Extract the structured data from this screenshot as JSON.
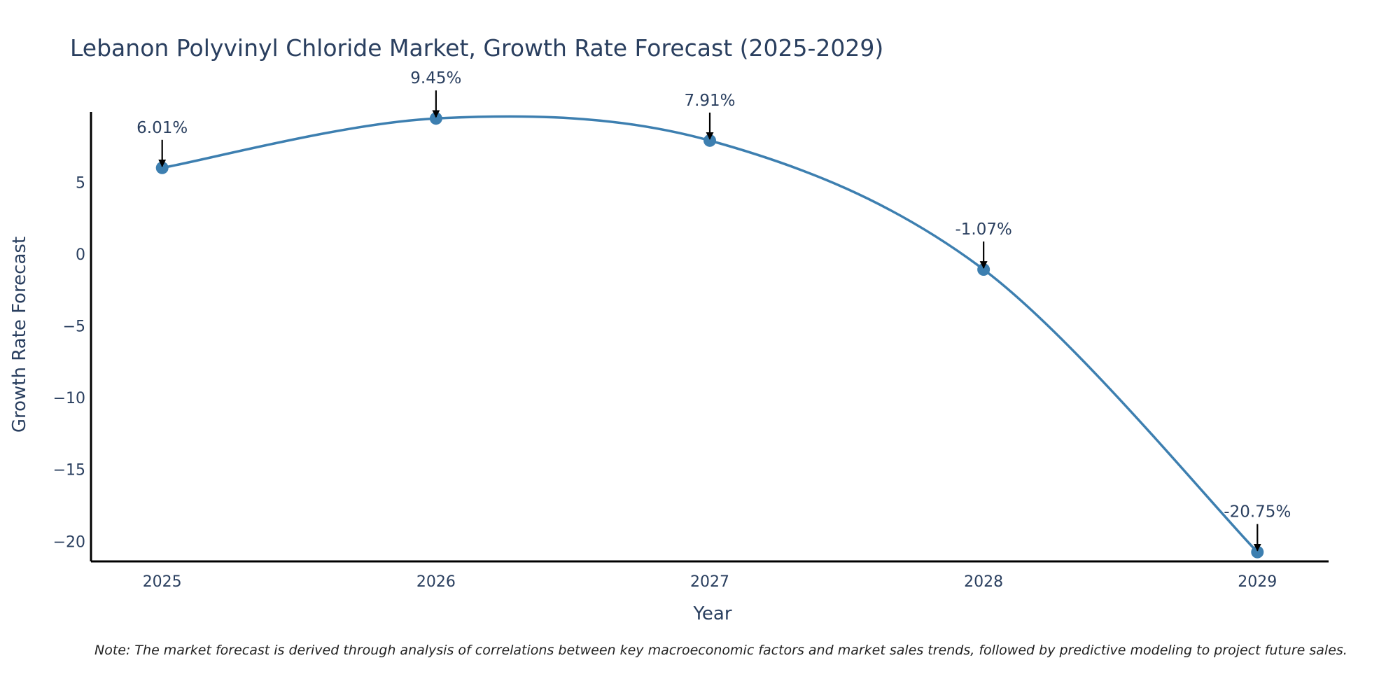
{
  "chart_data": {
    "type": "line",
    "title": "Lebanon Polyvinyl Chloride Market, Growth Rate Forecast (2025-2029)",
    "xlabel": "Year",
    "ylabel": "Growth Rate Forecast",
    "categories": [
      "2025",
      "2026",
      "2027",
      "2028",
      "2029"
    ],
    "values": [
      6.01,
      9.45,
      7.91,
      -1.07,
      -20.75
    ],
    "annotations": [
      "6.01%",
      "9.45%",
      "7.91%",
      "-1.07%",
      "-20.75%"
    ],
    "yticks": [
      5,
      0,
      -5,
      -10,
      -15,
      -20
    ],
    "ytick_labels": [
      "5",
      "0",
      "−5",
      "−10",
      "−15",
      "−20"
    ],
    "ylim": [
      -21.4,
      9.9
    ],
    "xlim": [
      -0.26,
      4.26
    ],
    "grid": false,
    "line_color": "#3d7fb0",
    "marker_color": "#3d7fb0",
    "arrow_color": "#000000"
  },
  "note": "Note: The market forecast is derived through analysis of correlations between key macroeconomic factors and market sales trends, followed by predictive modeling to project future sales."
}
